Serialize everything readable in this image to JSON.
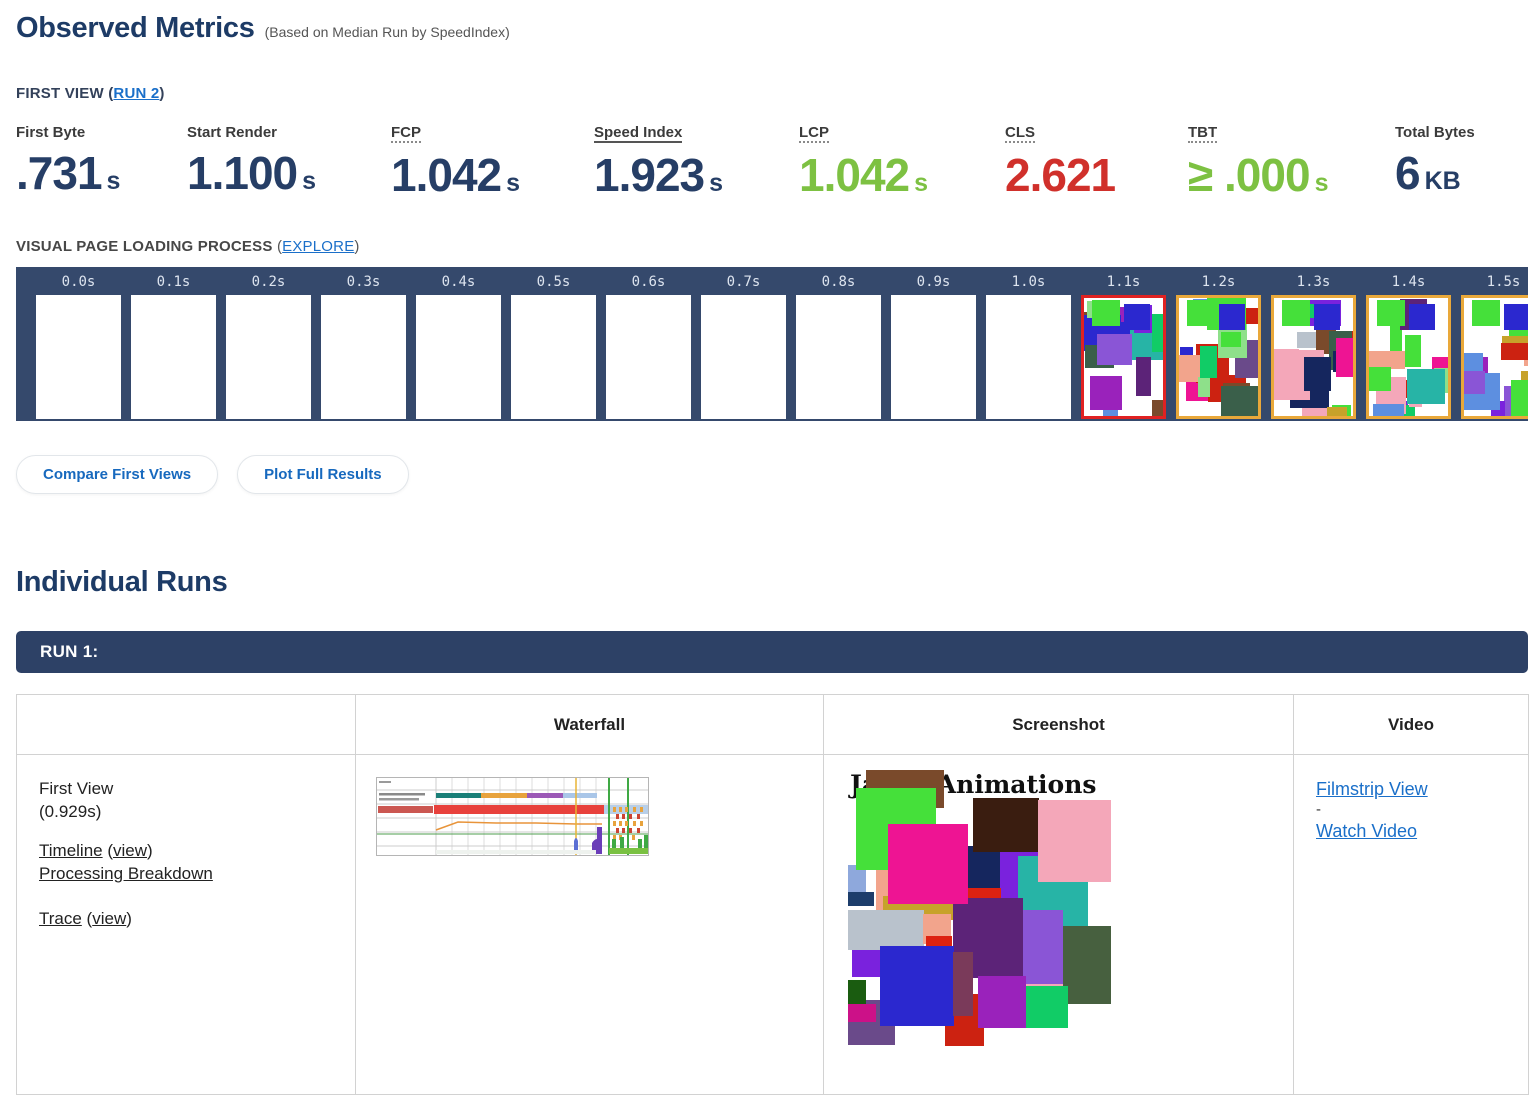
{
  "colors": {
    "navy": "#263e66",
    "heading": "#1d3b66",
    "green": "#7dc142",
    "red": "#d0302b",
    "link": "#1a6fc9",
    "filmstrip_bg": "#35496c",
    "run_bar": "#2d4166"
  },
  "header": {
    "title": "Observed Metrics",
    "subtitle": "(Based on Median Run by SpeedIndex)"
  },
  "first_view_line": {
    "prefix": "FIRST VIEW (",
    "run_link": "RUN 2",
    "suffix": ")"
  },
  "metrics": [
    {
      "label": "First Byte",
      "value": ".731",
      "unit": "s",
      "color": "navy",
      "underline": "none"
    },
    {
      "label": "Start Render",
      "value": "1.100",
      "unit": "s",
      "color": "navy",
      "underline": "none"
    },
    {
      "label": "FCP",
      "value": "1.042",
      "unit": "s",
      "color": "navy",
      "underline": "dotted"
    },
    {
      "label": "Speed Index",
      "value": "1.923",
      "unit": "s",
      "color": "navy",
      "underline": "solid"
    },
    {
      "label": "LCP",
      "value": "1.042",
      "unit": "s",
      "color": "green",
      "underline": "dotted"
    },
    {
      "label": "CLS",
      "value": "2.621",
      "unit": "",
      "color": "red",
      "underline": "dotted"
    },
    {
      "label": "TBT",
      "value": "≥ .000",
      "unit": "s",
      "color": "green",
      "underline": "dotted"
    },
    {
      "label": "Total Bytes",
      "value": "6",
      "unit": "KB",
      "color": "navy",
      "underline": "none"
    }
  ],
  "filmstrip_section": {
    "label": "VISUAL PAGE LOADING PROCESS",
    "paren_open": "(",
    "explore_link": "EXPLORE",
    "paren_close": ")",
    "frames": [
      {
        "time": "0.0s",
        "style": "blank"
      },
      {
        "time": "0.1s",
        "style": "blank"
      },
      {
        "time": "0.2s",
        "style": "blank"
      },
      {
        "time": "0.3s",
        "style": "blank"
      },
      {
        "time": "0.4s",
        "style": "blank"
      },
      {
        "time": "0.5s",
        "style": "blank"
      },
      {
        "time": "0.6s",
        "style": "blank"
      },
      {
        "time": "0.7s",
        "style": "blank"
      },
      {
        "time": "0.8s",
        "style": "blank"
      },
      {
        "time": "0.9s",
        "style": "blank"
      },
      {
        "time": "1.0s",
        "style": "blank"
      },
      {
        "time": "1.1s",
        "style": "red"
      },
      {
        "time": "1.2s",
        "style": "orange"
      },
      {
        "time": "1.3s",
        "style": "orange"
      },
      {
        "time": "1.4s",
        "style": "orange"
      },
      {
        "time": "1.5s",
        "style": "orange"
      }
    ]
  },
  "actions": {
    "compare": "Compare First Views",
    "plot": "Plot Full Results"
  },
  "individual_runs": {
    "heading": "Individual Runs",
    "run_label": "RUN 1:"
  },
  "results_table": {
    "columns": {
      "waterfall": "Waterfall",
      "screenshot": "Screenshot",
      "video": "Video"
    },
    "row": {
      "view_label": "First View",
      "view_time": "(0.929s)",
      "timeline_link": "Timeline",
      "timeline_view": "view",
      "processing_link": "Processing Breakdown",
      "trace_link": "Trace",
      "trace_view": "view",
      "screenshot_title": "Janky Animations",
      "video_links": {
        "filmstrip": "Filmstrip View",
        "separator": "-",
        "watch": "Watch Video"
      }
    }
  }
}
